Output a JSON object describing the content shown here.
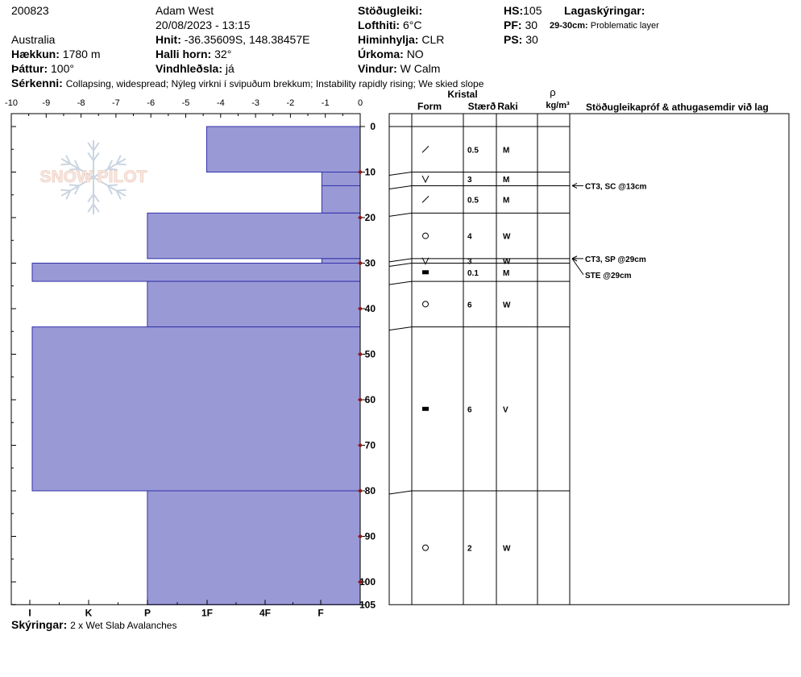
{
  "header": {
    "obs_id": "200823",
    "observer": "Adam West",
    "datetime": "20/08/2023 - 13:15",
    "location": "Australia",
    "coords_label": "Hnit:",
    "coords": "-36.35609S, 148.38457E",
    "elev_label": "Hækkun:",
    "elev": "1780 m",
    "slope_label": "Halli horn:",
    "slope": "32°",
    "aspect_label": "Þáttur:",
    "aspect": "100°",
    "wind_loading_label": "Vindhleðsla:",
    "wind_loading": "já",
    "stability_label": "Stöðugleiki:",
    "stability": "",
    "air_temp_label": "Lofthiti:",
    "air_temp": "6°C",
    "sky_label": "Himinhylja:",
    "sky": "CLR",
    "precip_label": "Úrkoma:",
    "precip": "NO",
    "wind_label": "Vindur:",
    "wind": "W Calm",
    "hs_label": "HS:",
    "hs": "105",
    "pf_label": "PF:",
    "pf": "30",
    "ps_label": "PS:",
    "ps": "30",
    "layer_notes_label": "Lagaskýringar:",
    "layer_note_range": "29-30cm:",
    "layer_note_text": "Problematic layer",
    "features_label": "Sérkenni:",
    "features": "Collapsing, widespread;  Nýleg virkni í svipuðum brekkum;  Instability rapidly rising;  We skied slope",
    "footer_label": "Skýringar:",
    "footer": "2 x Wet Slab Avalanches"
  },
  "logo_text": "SNOW PILOT",
  "columns": {
    "crystal": "Kristal",
    "form": "Form",
    "size": "Stærð",
    "moisture": "Raki",
    "rho": "ρ",
    "density_unit": "kg/m³",
    "tests": "Stöðugleikapróf & athugasemdir við lag"
  },
  "colors": {
    "hardness_fill": "#9999d6",
    "hardness_stroke": "#3333aa",
    "marker": "#8b1a1a"
  },
  "chart_data": {
    "type": "bar",
    "orientation": "horizontal",
    "x_axis_top": {
      "range": [
        -10,
        0
      ],
      "ticks": [
        -10,
        -9,
        -8,
        -7,
        -6,
        -5,
        -4,
        -3,
        -2,
        -1,
        0
      ]
    },
    "hardness_ticks": [
      "I",
      "K",
      "P",
      "1F",
      "4F",
      "F"
    ],
    "depth_axis": {
      "range": [
        0,
        105
      ],
      "ticks": [
        0,
        10,
        20,
        30,
        40,
        50,
        60,
        70,
        80,
        90,
        100,
        105
      ]
    },
    "temperature_markers": [
      10,
      20,
      30,
      40,
      50,
      60,
      70,
      80,
      90,
      100
    ],
    "layers": [
      {
        "top": 0,
        "bottom": 10,
        "hardness": 4.4,
        "form": "faceted",
        "size": "0.5",
        "moisture": "M"
      },
      {
        "top": 10,
        "bottom": 13,
        "hardness": 1.1,
        "form": "depth",
        "size": "3",
        "moisture": "M"
      },
      {
        "top": 13,
        "bottom": 19,
        "hardness": 1.1,
        "form": "faceted",
        "size": "0.5",
        "moisture": "M"
      },
      {
        "top": 19,
        "bottom": 29,
        "hardness": 6.1,
        "form": "round",
        "size": "4",
        "moisture": "W"
      },
      {
        "top": 29,
        "bottom": 30,
        "hardness": 1.1,
        "form": "depth",
        "size": "3",
        "moisture": "W"
      },
      {
        "top": 30,
        "bottom": 34,
        "hardness": 9.4,
        "form": "ice",
        "size": "0.1",
        "moisture": "M"
      },
      {
        "top": 34,
        "bottom": 44,
        "hardness": 6.1,
        "form": "round",
        "size": "6",
        "moisture": "W"
      },
      {
        "top": 44,
        "bottom": 80,
        "hardness": 9.4,
        "form": "ice",
        "size": "6",
        "moisture": "V"
      },
      {
        "top": 80,
        "bottom": 105,
        "hardness": 6.1,
        "form": "round",
        "size": "2",
        "moisture": "W"
      }
    ],
    "tests": [
      {
        "depth": 13,
        "text": "CT3, SC @13cm"
      },
      {
        "depth": 29,
        "text": "CT3, SP @29cm"
      },
      {
        "depth": 29,
        "text": "STE @29cm"
      }
    ]
  }
}
